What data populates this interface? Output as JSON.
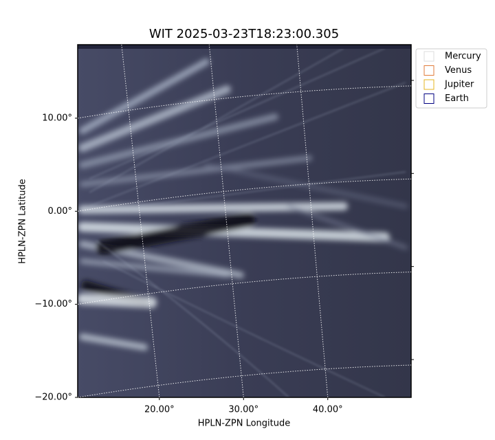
{
  "chart_data": {
    "type": "image",
    "title": "WIT 2025-03-23T18:23:00.305",
    "xlabel": "HPLN-ZPN Longitude",
    "ylabel": "HPLN-ZPN Latitude",
    "xlim": [
      10.3,
      49.9
    ],
    "ylim": [
      -20,
      17.9
    ],
    "xticks": [
      {
        "value": 20,
        "label": "20.00°"
      },
      {
        "value": 30,
        "label": "30.00°"
      },
      {
        "value": 40,
        "label": "40.00°"
      }
    ],
    "yticks": [
      {
        "value": -20,
        "label": "−20.00°"
      },
      {
        "value": -10,
        "label": "−10.00°"
      },
      {
        "value": 0,
        "label": "0.00°"
      },
      {
        "value": 10,
        "label": "10.00°"
      }
    ],
    "grid": true,
    "legend": "upper right",
    "series": [
      {
        "name": "Mercury",
        "color": "#dddddd"
      },
      {
        "name": "Venus",
        "color": "#e07b39"
      },
      {
        "name": "Jupiter",
        "color": "#e6b422"
      },
      {
        "name": "Earth",
        "color": "#000080"
      }
    ]
  }
}
